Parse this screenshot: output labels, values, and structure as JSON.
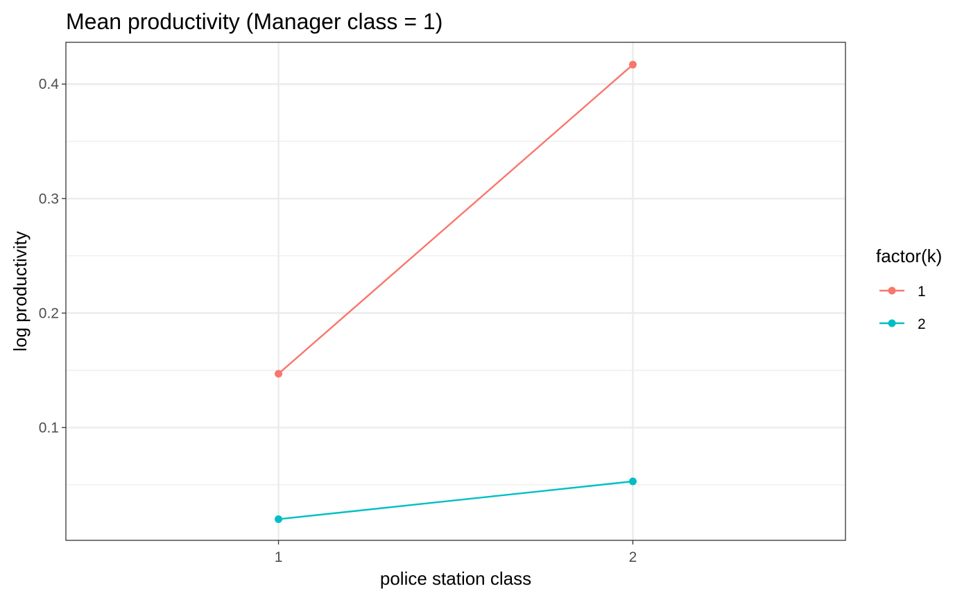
{
  "chart_data": {
    "type": "line",
    "title": "Mean productivity (Manager class = 1)",
    "xlabel": "police station class",
    "ylabel": "log productivity",
    "x": [
      1,
      2
    ],
    "x_ticks": [
      "1",
      "2"
    ],
    "xlim": [
      0.4,
      2.6
    ],
    "y_ticks": [
      "0.1",
      "0.2",
      "0.3",
      "0.4"
    ],
    "y_tick_values": [
      0.1,
      0.2,
      0.3,
      0.4
    ],
    "ylim": [
      0.0015,
      0.4365
    ],
    "grid": true,
    "legend": {
      "title": "factor(k)",
      "position": "right"
    },
    "series": [
      {
        "name": "1",
        "color": "#F8766D",
        "values": [
          0.147,
          0.417
        ]
      },
      {
        "name": "2",
        "color": "#00BFC4",
        "values": [
          0.02,
          0.053
        ]
      }
    ]
  }
}
